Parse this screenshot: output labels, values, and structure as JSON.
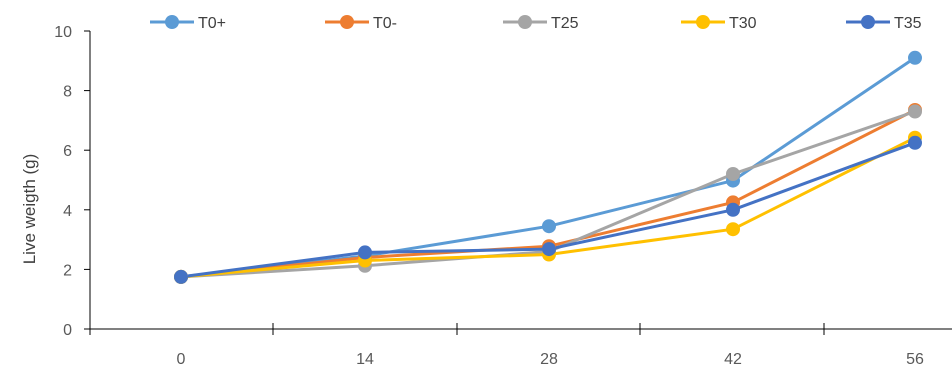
{
  "chart_data": {
    "type": "line",
    "title": "",
    "xlabel": "",
    "ylabel": "Live weigth  (g)",
    "x": [
      0,
      14,
      28,
      42,
      56
    ],
    "x_tick_labels": [
      "0",
      "14",
      "28",
      "42",
      "56"
    ],
    "y_tick_labels": [
      "0",
      "2",
      "4",
      "6",
      "8",
      "10"
    ],
    "ylim": [
      0,
      10
    ],
    "grid": false,
    "legend_position": "top",
    "series": [
      {
        "name": "T0+",
        "color": "#5B9BD5",
        "values": [
          1.75,
          2.45,
          3.45,
          4.98,
          9.1
        ]
      },
      {
        "name": "T0-",
        "color": "#ED7D31",
        "values": [
          1.75,
          2.4,
          2.78,
          4.25,
          7.35
        ]
      },
      {
        "name": "T25",
        "color": "#A5A5A5",
        "values": [
          1.75,
          2.12,
          2.6,
          5.2,
          7.3
        ]
      },
      {
        "name": "T30",
        "color": "#FFC000",
        "values": [
          1.75,
          2.3,
          2.5,
          3.35,
          6.42
        ]
      },
      {
        "name": "T35",
        "color": "#4472C4",
        "values": [
          1.75,
          2.57,
          2.68,
          4.0,
          6.25
        ]
      }
    ]
  }
}
